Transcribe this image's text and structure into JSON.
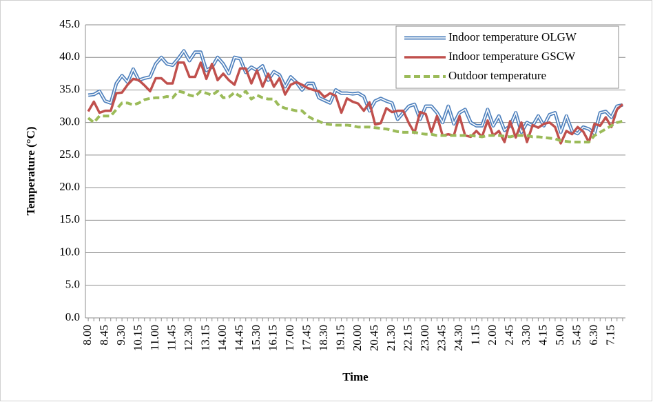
{
  "chart_data": {
    "type": "line",
    "ylabel": "Temperature (°C)",
    "xlabel": "Time",
    "categories": [
      "8.00",
      null,
      null,
      "8.45",
      null,
      null,
      "9.30",
      null,
      null,
      "10.15",
      null,
      null,
      "11.00",
      null,
      null,
      "11.45",
      null,
      null,
      "12.30",
      null,
      null,
      "13.15",
      null,
      null,
      "14.00",
      null,
      null,
      "14.45",
      null,
      null,
      "15.30",
      null,
      null,
      "16.15",
      null,
      null,
      "17.00",
      null,
      null,
      "17.45",
      null,
      null,
      "18.30",
      null,
      null,
      "19.15",
      null,
      null,
      "20.00",
      null,
      null,
      "20.45",
      null,
      null,
      "21.30",
      null,
      null,
      "22.15",
      null,
      null,
      "23.00",
      null,
      null,
      "23.45",
      null,
      null,
      "24.30",
      null,
      null,
      "1.15",
      null,
      null,
      "2.00",
      null,
      null,
      "2.45",
      null,
      null,
      "3.30",
      null,
      null,
      "4.15",
      null,
      null,
      "5.00",
      null,
      null,
      "5.45",
      null,
      null,
      "6.30",
      null,
      null,
      "7.15",
      null,
      null
    ],
    "series": [
      {
        "name": "Indoor temperature OLGW",
        "color": "#4f81bd",
        "line_style": "double",
        "values": [
          34.2,
          34.3,
          34.8,
          33.3,
          33.0,
          36.0,
          37.2,
          36.2,
          38.2,
          36.5,
          36.8,
          37.0,
          39.0,
          40.0,
          39.0,
          38.8,
          39.8,
          41.0,
          39.5,
          40.8,
          40.8,
          38.0,
          38.5,
          40.0,
          39.0,
          37.5,
          40.0,
          39.8,
          37.7,
          38.5,
          38.0,
          38.7,
          36.5,
          37.8,
          37.3,
          35.5,
          37.0,
          36.2,
          35.0,
          36.0,
          36.0,
          33.8,
          33.4,
          33.0,
          35.0,
          34.5,
          34.5,
          34.4,
          34.5,
          34.0,
          31.8,
          33.3,
          33.7,
          33.3,
          33.0,
          30.5,
          31.5,
          32.5,
          32.8,
          30.5,
          32.5,
          32.5,
          31.5,
          30.0,
          32.5,
          29.8,
          31.5,
          32.0,
          30.0,
          29.5,
          29.5,
          32.0,
          29.5,
          31.0,
          28.8,
          29.5,
          31.5,
          28.5,
          30.0,
          29.5,
          31.0,
          29.5,
          31.2,
          31.5,
          28.5,
          31.0,
          28.7,
          28.3,
          29.3,
          29.0,
          28.3,
          31.5,
          31.7,
          30.8,
          32.5,
          32.7
        ]
      },
      {
        "name": "Indoor temperature GSCW",
        "color": "#c0504d",
        "line_style": "solid",
        "values": [
          31.7,
          33.2,
          31.5,
          31.8,
          31.8,
          34.5,
          34.6,
          35.8,
          36.7,
          36.5,
          35.7,
          34.8,
          36.8,
          36.8,
          36.0,
          36.0,
          39.2,
          39.2,
          37.0,
          37.0,
          39.2,
          36.7,
          39.0,
          36.5,
          37.5,
          36.5,
          35.8,
          38.3,
          38.3,
          36.0,
          38.0,
          35.5,
          37.5,
          35.5,
          36.8,
          34.3,
          35.8,
          36.2,
          35.8,
          35.3,
          35.0,
          34.8,
          33.9,
          34.5,
          34.1,
          31.5,
          33.7,
          33.2,
          32.9,
          31.8,
          33.1,
          29.7,
          29.9,
          32.2,
          31.6,
          31.8,
          31.8,
          29.9,
          28.4,
          31.6,
          31.3,
          28.5,
          31.0,
          28.0,
          28.2,
          28.0,
          31.0,
          28.0,
          27.8,
          28.7,
          27.8,
          30.3,
          28.0,
          28.7,
          27.0,
          30.2,
          27.7,
          30.0,
          27.0,
          29.6,
          29.2,
          29.8,
          30.0,
          29.3,
          26.8,
          28.7,
          28.2,
          29.3,
          28.6,
          27.0,
          29.8,
          29.5,
          30.8,
          29.3,
          32.0,
          32.8
        ]
      },
      {
        "name": "Outdoor temperature",
        "color": "#9bbb59",
        "line_style": "dashed",
        "values": [
          30.7,
          30.0,
          31.0,
          31.0,
          31.0,
          32.0,
          33.0,
          33.0,
          32.7,
          33.0,
          33.5,
          33.7,
          33.8,
          33.8,
          34.0,
          33.8,
          34.8,
          34.6,
          34.2,
          34.0,
          34.8,
          34.5,
          34.2,
          34.8,
          33.8,
          33.9,
          34.6,
          34.0,
          34.8,
          33.6,
          34.2,
          33.8,
          33.6,
          33.6,
          32.5,
          32.2,
          32.0,
          31.8,
          31.8,
          31.0,
          30.5,
          30.2,
          29.8,
          29.7,
          29.6,
          29.6,
          29.6,
          29.5,
          29.3,
          29.3,
          29.3,
          29.2,
          29.1,
          29.0,
          28.8,
          28.6,
          28.5,
          28.5,
          28.5,
          28.3,
          28.2,
          28.2,
          28.0,
          28.0,
          28.0,
          28.0,
          28.0,
          28.0,
          28.0,
          27.9,
          27.8,
          28.0,
          28.0,
          28.0,
          27.9,
          27.8,
          28.0,
          28.0,
          28.0,
          27.8,
          27.8,
          27.7,
          27.6,
          27.5,
          27.2,
          27.1,
          27.0,
          27.0,
          27.0,
          27.0,
          28.0,
          28.5,
          29.0,
          29.5,
          30.0,
          30.2
        ]
      }
    ],
    "ylim": [
      0,
      45
    ],
    "yticks": [
      {
        "value": 0,
        "label": "0.0"
      },
      {
        "value": 5,
        "label": "5.0"
      },
      {
        "value": 10,
        "label": "10.0"
      },
      {
        "value": 15,
        "label": "15.0"
      },
      {
        "value": 20,
        "label": "20.0"
      },
      {
        "value": 25,
        "label": "25.0"
      },
      {
        "value": 30,
        "label": "30.0"
      },
      {
        "value": 35,
        "label": "35.0"
      },
      {
        "value": 40,
        "label": "40.0"
      },
      {
        "value": 45,
        "label": "45.0"
      }
    ],
    "grid": true,
    "legend": "top-right"
  }
}
